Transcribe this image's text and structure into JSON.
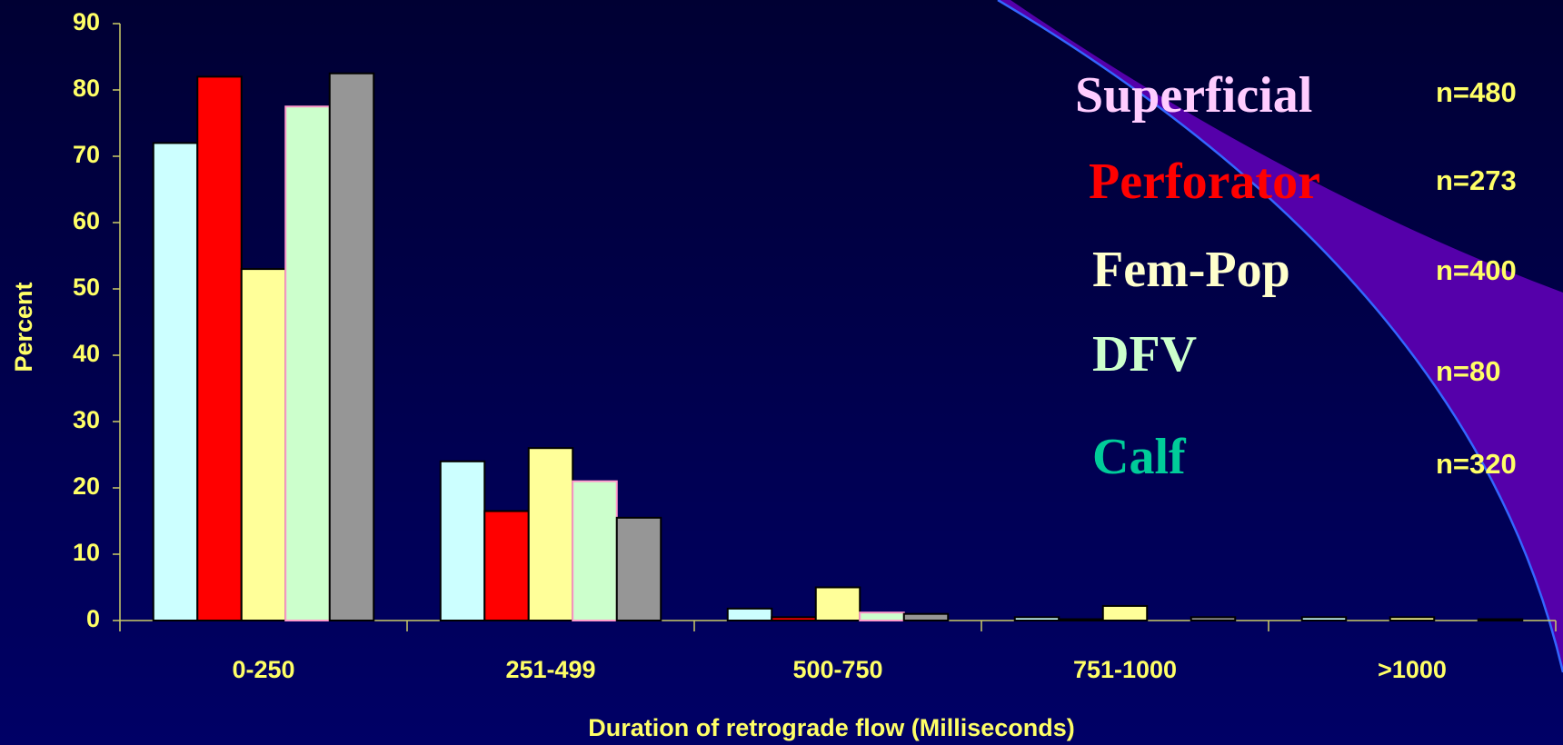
{
  "chart_data": {
    "type": "bar",
    "ylabel": "Percent",
    "xlabel": "Duration of retrograde flow (Milliseconds)",
    "categories": [
      "0-250",
      "251-499",
      "500-750",
      "751-1000",
      ">1000"
    ],
    "ylim": [
      0,
      90
    ],
    "yticks": [
      0,
      10,
      20,
      30,
      40,
      50,
      60,
      70,
      80,
      90
    ],
    "series": [
      {
        "name": "Superficial",
        "note": "n=480",
        "color": "#ccffff",
        "edgecolor": "#000000",
        "label_color": "#ffccff",
        "values": [
          72,
          24,
          1.8,
          0.5,
          0.5
        ]
      },
      {
        "name": "Perforator",
        "note": "n=273",
        "color": "#ff0000",
        "edgecolor": "#000000",
        "label_color": "#ff0000",
        "values": [
          82,
          16.5,
          0.5,
          0.2,
          0
        ]
      },
      {
        "name": "Fem-Pop",
        "note": "n=400",
        "color": "#ffff99",
        "edgecolor": "#000000",
        "label_color": "#ffffcc",
        "values": [
          53,
          26,
          5,
          2.2,
          0.5
        ]
      },
      {
        "name": "DFV",
        "note": "n=80",
        "color": "#ccffcc",
        "edgecolor": "#ff99cc",
        "label_color": "#ccffcc",
        "values": [
          77.5,
          21,
          1.2,
          0,
          0
        ]
      },
      {
        "name": "Calf",
        "note": "n=320",
        "color": "#969696",
        "edgecolor": "#000000",
        "label_color": "#00cc99",
        "values": [
          82.5,
          15.5,
          1,
          0.5,
          0.2
        ]
      }
    ]
  }
}
